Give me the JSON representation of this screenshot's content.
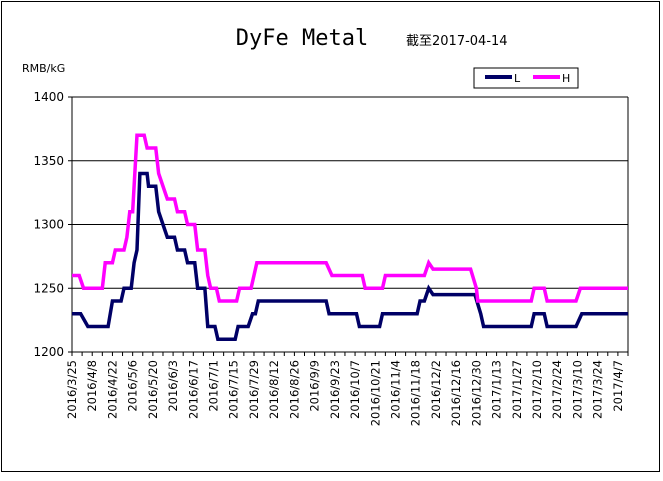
{
  "chart_data": {
    "type": "line",
    "title": "DyFe Metal",
    "subtitle": "截至2017-04-14",
    "ylabel": "RMB/kG",
    "ylim": [
      1200,
      1400
    ],
    "yticks": [
      1200,
      1250,
      1300,
      1350,
      1400
    ],
    "grid": "horizontal",
    "legend_position": "top-right",
    "x_range": [
      "2016-03-25",
      "2017-04-14"
    ],
    "tick_labels": [
      "2016/3/25",
      "2016/4/8",
      "2016/4/22",
      "2016/5/6",
      "2016/5/20",
      "2016/6/3",
      "2016/6/17",
      "2016/7/1",
      "2016/7/15",
      "2016/7/29",
      "2016/8/12",
      "2016/8/26",
      "2016/9/9",
      "2016/9/23",
      "2016/10/7",
      "2016/10/21",
      "2016/11/4",
      "2016/11/18",
      "2016/12/2",
      "2016/12/16",
      "2016/12/30",
      "2017/1/13",
      "2017/1/27",
      "2017/2/10",
      "2017/2/24",
      "2017/3/10",
      "2017/3/24",
      "2017/4/7"
    ],
    "series": [
      {
        "name": "L",
        "color": "#000066",
        "points": [
          [
            "2016-03-25",
            1230
          ],
          [
            "2016-03-31",
            1230
          ],
          [
            "2016-04-05",
            1220
          ],
          [
            "2016-04-19",
            1220
          ],
          [
            "2016-04-22",
            1240
          ],
          [
            "2016-04-28",
            1240
          ],
          [
            "2016-04-30",
            1250
          ],
          [
            "2016-05-05",
            1250
          ],
          [
            "2016-05-07",
            1270
          ],
          [
            "2016-05-09",
            1280
          ],
          [
            "2016-05-11",
            1340
          ],
          [
            "2016-05-16",
            1340
          ],
          [
            "2016-05-17",
            1330
          ],
          [
            "2016-05-22",
            1330
          ],
          [
            "2016-05-24",
            1310
          ],
          [
            "2016-05-27",
            1300
          ],
          [
            "2016-05-30",
            1290
          ],
          [
            "2016-06-04",
            1290
          ],
          [
            "2016-06-06",
            1280
          ],
          [
            "2016-06-11",
            1280
          ],
          [
            "2016-06-13",
            1270
          ],
          [
            "2016-06-18",
            1270
          ],
          [
            "2016-06-20",
            1250
          ],
          [
            "2016-06-25",
            1250
          ],
          [
            "2016-06-27",
            1220
          ],
          [
            "2016-07-02",
            1220
          ],
          [
            "2016-07-04",
            1210
          ],
          [
            "2016-07-16",
            1210
          ],
          [
            "2016-07-18",
            1220
          ],
          [
            "2016-07-25",
            1220
          ],
          [
            "2016-07-28",
            1230
          ],
          [
            "2016-07-30",
            1230
          ],
          [
            "2016-08-01",
            1240
          ],
          [
            "2016-09-17",
            1240
          ],
          [
            "2016-09-19",
            1230
          ],
          [
            "2016-09-30",
            1230
          ],
          [
            "2016-10-01",
            1230
          ],
          [
            "2016-10-08",
            1230
          ],
          [
            "2016-10-10",
            1220
          ],
          [
            "2016-10-24",
            1220
          ],
          [
            "2016-10-26",
            1230
          ],
          [
            "2016-11-14",
            1230
          ],
          [
            "2016-11-16",
            1230
          ],
          [
            "2016-11-19",
            1230
          ],
          [
            "2016-11-21",
            1240
          ],
          [
            "2016-11-24",
            1240
          ],
          [
            "2016-11-27",
            1250
          ],
          [
            "2016-11-30",
            1245
          ],
          [
            "2016-12-24",
            1245
          ],
          [
            "2016-12-29",
            1245
          ],
          [
            "2017-01-02",
            1230
          ],
          [
            "2017-01-04",
            1220
          ],
          [
            "2017-02-06",
            1220
          ],
          [
            "2017-02-08",
            1230
          ],
          [
            "2017-02-15",
            1230
          ],
          [
            "2017-02-17",
            1220
          ],
          [
            "2017-03-09",
            1220
          ],
          [
            "2017-03-13",
            1230
          ],
          [
            "2017-04-14",
            1230
          ]
        ]
      },
      {
        "name": "H",
        "color": "#ff00ff",
        "points": [
          [
            "2016-03-25",
            1260
          ],
          [
            "2016-03-30",
            1260
          ],
          [
            "2016-04-02",
            1250
          ],
          [
            "2016-04-15",
            1250
          ],
          [
            "2016-04-17",
            1270
          ],
          [
            "2016-04-22",
            1270
          ],
          [
            "2016-04-24",
            1280
          ],
          [
            "2016-04-30",
            1280
          ],
          [
            "2016-05-02",
            1290
          ],
          [
            "2016-05-04",
            1310
          ],
          [
            "2016-05-06",
            1310
          ],
          [
            "2016-05-09",
            1370
          ],
          [
            "2016-05-14",
            1370
          ],
          [
            "2016-05-16",
            1360
          ],
          [
            "2016-05-22",
            1360
          ],
          [
            "2016-05-24",
            1340
          ],
          [
            "2016-05-27",
            1330
          ],
          [
            "2016-05-30",
            1320
          ],
          [
            "2016-06-04",
            1320
          ],
          [
            "2016-06-06",
            1310
          ],
          [
            "2016-06-11",
            1310
          ],
          [
            "2016-06-13",
            1300
          ],
          [
            "2016-06-18",
            1300
          ],
          [
            "2016-06-20",
            1280
          ],
          [
            "2016-06-25",
            1280
          ],
          [
            "2016-06-27",
            1260
          ],
          [
            "2016-06-29",
            1250
          ],
          [
            "2016-07-03",
            1250
          ],
          [
            "2016-07-05",
            1240
          ],
          [
            "2016-07-17",
            1240
          ],
          [
            "2016-07-19",
            1250
          ],
          [
            "2016-07-27",
            1250
          ],
          [
            "2016-07-29",
            1260
          ],
          [
            "2016-07-31",
            1270
          ],
          [
            "2016-09-17",
            1270
          ],
          [
            "2016-09-21",
            1260
          ],
          [
            "2016-10-12",
            1260
          ],
          [
            "2016-10-14",
            1250
          ],
          [
            "2016-10-26",
            1250
          ],
          [
            "2016-10-28",
            1260
          ],
          [
            "2016-11-24",
            1260
          ],
          [
            "2016-11-27",
            1270
          ],
          [
            "2016-11-30",
            1265
          ],
          [
            "2016-12-26",
            1265
          ],
          [
            "2016-12-30",
            1250
          ],
          [
            "2016-12-31",
            1240
          ],
          [
            "2017-02-06",
            1240
          ],
          [
            "2017-02-08",
            1250
          ],
          [
            "2017-02-15",
            1250
          ],
          [
            "2017-02-17",
            1240
          ],
          [
            "2017-03-09",
            1240
          ],
          [
            "2017-03-12",
            1250
          ],
          [
            "2017-04-14",
            1250
          ]
        ]
      }
    ]
  }
}
